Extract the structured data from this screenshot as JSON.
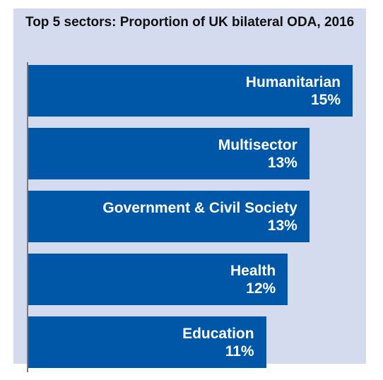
{
  "chart_data": {
    "type": "bar",
    "orientation": "horizontal",
    "title": "Top 5 sectors: Proportion of UK bilateral ODA, 2016",
    "categories": [
      "Humanitarian",
      "Multisector",
      "Government & Civil Society",
      "Health",
      "Education"
    ],
    "values": [
      15,
      13,
      13,
      12,
      11
    ],
    "value_labels": [
      "15%",
      "13%",
      "13%",
      "12%",
      "11%"
    ],
    "unit": "%",
    "bar_color": "#0057a8",
    "background_color": "#d5dbef",
    "axis_color": "#7a7a7a",
    "label_color": "#ffffff",
    "legend": "none",
    "grid": false,
    "xlim": [
      0,
      15
    ]
  }
}
